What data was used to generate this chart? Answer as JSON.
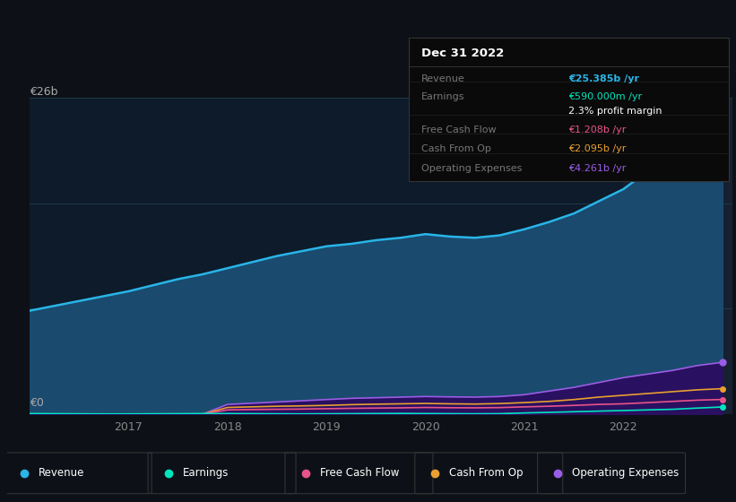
{
  "background_color": "#0d1117",
  "plot_bg_color": "#0d1b2a",
  "years": [
    2016.0,
    2016.25,
    2016.5,
    2016.75,
    2017.0,
    2017.25,
    2017.5,
    2017.75,
    2018.0,
    2018.25,
    2018.5,
    2018.75,
    2019.0,
    2019.25,
    2019.5,
    2019.75,
    2020.0,
    2020.25,
    2020.5,
    2020.75,
    2021.0,
    2021.25,
    2021.5,
    2021.75,
    2022.0,
    2022.25,
    2022.5,
    2022.75,
    2023.0
  ],
  "revenue": [
    8.5,
    8.9,
    9.3,
    9.7,
    10.1,
    10.6,
    11.1,
    11.5,
    12.0,
    12.5,
    13.0,
    13.4,
    13.8,
    14.0,
    14.3,
    14.5,
    14.8,
    14.6,
    14.5,
    14.7,
    15.2,
    15.8,
    16.5,
    17.5,
    18.5,
    20.0,
    22.0,
    24.0,
    25.385
  ],
  "earnings": [
    0.05,
    0.04,
    0.03,
    0.02,
    0.02,
    0.03,
    0.04,
    0.05,
    0.05,
    0.04,
    0.03,
    0.02,
    0.03,
    0.04,
    0.05,
    0.06,
    0.05,
    0.04,
    0.03,
    0.04,
    0.1,
    0.15,
    0.2,
    0.25,
    0.3,
    0.35,
    0.4,
    0.5,
    0.59
  ],
  "free_cash_flow": [
    0.0,
    0.0,
    0.0,
    0.0,
    0.0,
    0.0,
    0.0,
    0.0,
    0.35,
    0.38,
    0.4,
    0.42,
    0.45,
    0.48,
    0.5,
    0.52,
    0.55,
    0.53,
    0.52,
    0.54,
    0.6,
    0.65,
    0.72,
    0.8,
    0.85,
    0.95,
    1.05,
    1.15,
    1.208
  ],
  "cash_from_op": [
    0.0,
    0.0,
    0.0,
    0.0,
    0.0,
    0.0,
    0.0,
    0.0,
    0.55,
    0.6,
    0.65,
    0.68,
    0.72,
    0.78,
    0.82,
    0.85,
    0.88,
    0.85,
    0.83,
    0.87,
    0.95,
    1.05,
    1.2,
    1.4,
    1.55,
    1.7,
    1.85,
    2.0,
    2.095
  ],
  "op_expenses": [
    0.0,
    0.0,
    0.0,
    0.0,
    0.0,
    0.0,
    0.0,
    0.0,
    0.8,
    0.9,
    1.0,
    1.1,
    1.2,
    1.3,
    1.35,
    1.4,
    1.45,
    1.42,
    1.4,
    1.45,
    1.6,
    1.9,
    2.2,
    2.6,
    3.0,
    3.3,
    3.6,
    4.0,
    4.261
  ],
  "revenue_color": "#29b5e8",
  "earnings_color": "#00e5c0",
  "fcf_color": "#e8538a",
  "cashop_color": "#e8a030",
  "opex_color": "#9b5de5",
  "revenue_fill": "#1a4a6e",
  "opex_fill": "#2a1060",
  "grid_color": "#1e3a4a",
  "ylabel_text": "€26b",
  "y0_text": "€0",
  "ylim": [
    0,
    26
  ],
  "xlim": [
    2016.0,
    2023.1
  ],
  "highlight_start": 2022.0,
  "highlight_end": 2023.1,
  "xtick_years": [
    2017,
    2018,
    2019,
    2020,
    2021,
    2022
  ],
  "tooltip": {
    "title": "Dec 31 2022",
    "rows": [
      {
        "label": "Revenue",
        "value": "€25.385b /yr",
        "color": "#29b5e8"
      },
      {
        "label": "Earnings",
        "value": "€590.000m /yr",
        "color": "#00e5c0"
      },
      {
        "label": "",
        "value": "2.3% profit margin",
        "color": "#ffffff"
      },
      {
        "label": "Free Cash Flow",
        "value": "€1.208b /yr",
        "color": "#e8538a"
      },
      {
        "label": "Cash From Op",
        "value": "€2.095b /yr",
        "color": "#e8a030"
      },
      {
        "label": "Operating Expenses",
        "value": "€4.261b /yr",
        "color": "#9b5de5"
      }
    ]
  },
  "legend": [
    {
      "label": "Revenue",
      "color": "#29b5e8"
    },
    {
      "label": "Earnings",
      "color": "#00e5c0"
    },
    {
      "label": "Free Cash Flow",
      "color": "#e8538a"
    },
    {
      "label": "Cash From Op",
      "color": "#e8a030"
    },
    {
      "label": "Operating Expenses",
      "color": "#9b5de5"
    }
  ]
}
